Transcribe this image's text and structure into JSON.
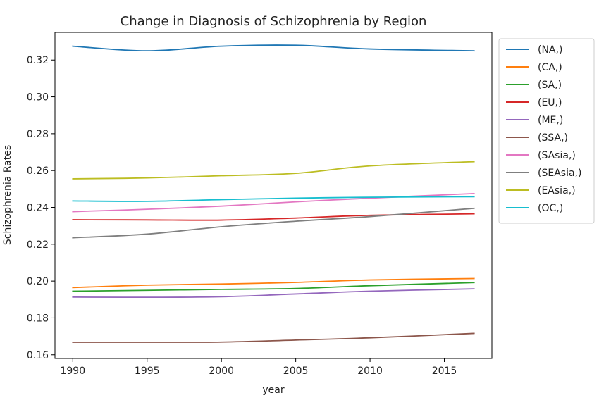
{
  "chart_data": {
    "type": "line",
    "title": "Change in Diagnosis of Schizophrenia by Region",
    "xlabel": "year",
    "ylabel": "Schizophrenia Rates",
    "xlim": [
      1988.8,
      2018.2
    ],
    "ylim": [
      0.158,
      0.335
    ],
    "x_ticks": [
      1990,
      1995,
      2000,
      2005,
      2010,
      2015
    ],
    "y_ticks": [
      0.16,
      0.18,
      0.2,
      0.22,
      0.24,
      0.26,
      0.28,
      0.3,
      0.32
    ],
    "y_tick_labels": [
      "0.16",
      "0.18",
      "0.20",
      "0.22",
      "0.24",
      "0.26",
      "0.28",
      "0.30",
      "0.32"
    ],
    "grid": false,
    "legend_position": "outside-right",
    "x": [
      1990,
      1995,
      2000,
      2005,
      2010,
      2017
    ],
    "series": [
      {
        "name": "(NA,)",
        "color": "#1f77b4",
        "values": [
          0.3275,
          0.325,
          0.3275,
          0.328,
          0.326,
          0.325
        ]
      },
      {
        "name": "(CA,)",
        "color": "#ff7f0e",
        "values": [
          0.1965,
          0.1978,
          0.1984,
          0.1993,
          0.2006,
          0.2014
        ]
      },
      {
        "name": "(SA,)",
        "color": "#2ca02c",
        "values": [
          0.1945,
          0.195,
          0.1955,
          0.196,
          0.1975,
          0.1992
        ]
      },
      {
        "name": "(EU,)",
        "color": "#d62728",
        "values": [
          0.2333,
          0.2332,
          0.2331,
          0.2342,
          0.2357,
          0.2365
        ]
      },
      {
        "name": "(ME,)",
        "color": "#9467bd",
        "values": [
          0.1913,
          0.1912,
          0.1915,
          0.193,
          0.1945,
          0.1958
        ]
      },
      {
        "name": "(SSA,)",
        "color": "#8c564b",
        "values": [
          0.1668,
          0.1668,
          0.1669,
          0.168,
          0.1692,
          0.1716
        ]
      },
      {
        "name": "(SAsia,)",
        "color": "#e377c2",
        "values": [
          0.2377,
          0.239,
          0.2407,
          0.243,
          0.245,
          0.2475
        ]
      },
      {
        "name": "(SEAsia,)",
        "color": "#7f7f7f",
        "values": [
          0.2235,
          0.2255,
          0.2295,
          0.2325,
          0.235,
          0.2395
        ]
      },
      {
        "name": "(EAsia,)",
        "color": "#bcbd22",
        "values": [
          0.2555,
          0.256,
          0.2572,
          0.2585,
          0.2625,
          0.2648
        ]
      },
      {
        "name": "(OC,)",
        "color": "#17becf",
        "values": [
          0.2435,
          0.2433,
          0.2442,
          0.245,
          0.2455,
          0.2458
        ]
      }
    ]
  }
}
